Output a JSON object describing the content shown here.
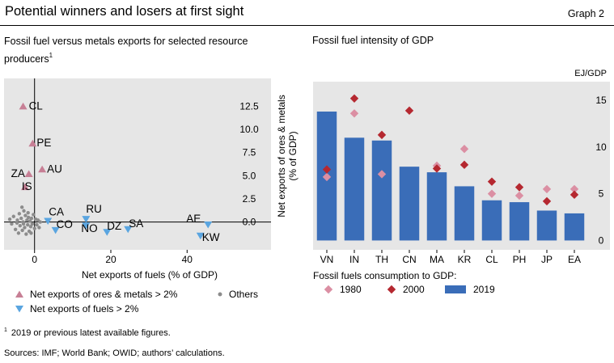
{
  "header": {
    "title": "Potential winners and losers at first sight",
    "graph_label": "Graph 2"
  },
  "left_panel": {
    "subtitle": "Fossil fuel versus metals exports for selected resource producers",
    "subtitle_note": "1"
  },
  "right_panel": {
    "subtitle": "Fossil fuel intensity of GDP"
  },
  "footnote": {
    "marker": "1",
    "text": "2019 or previous latest available figures."
  },
  "sources": "Sources: IMF; World Bank; OWID; authors’ calculations.",
  "colors": {
    "metals": "#c77f95",
    "fuels": "#5aa5e0",
    "others": "#8c8c8c",
    "bar_2019": "#3a6db8",
    "d1980": "#db8fa3",
    "d2000": "#b52830",
    "plot_bg": "#e6e6e6"
  },
  "chart_data": [
    {
      "type": "scatter",
      "title": "Fossil fuel versus metals exports for selected resource producers",
      "xlabel": "Net exports of fuels (% of GDP)",
      "ylabel": "Net exports of ores & metals (% of GDP)",
      "xlim": [
        -8,
        62
      ],
      "ylim": [
        -3,
        15.5
      ],
      "xticks": [
        0,
        20,
        40
      ],
      "yticks": [
        0.0,
        2.5,
        5.0,
        7.5,
        10.0,
        12.5
      ],
      "ytick_labels": [
        "0.0",
        "2.5",
        "5.0",
        "7.5",
        "10.0",
        "12.5"
      ],
      "y_axis_position": "right",
      "grid": false,
      "series": [
        {
          "name": "Net exports of ores & metals > 2%",
          "marker": "triangle-up",
          "points": [
            {
              "label": "CL",
              "x": -3.0,
              "y": 12.5
            },
            {
              "label": "PE",
              "x": -0.5,
              "y": 8.5
            },
            {
              "label": "AU",
              "x": 2.0,
              "y": 5.7
            },
            {
              "label": "ZA",
              "x": -1.5,
              "y": 5.2
            },
            {
              "label": "IS",
              "x": -2.5,
              "y": 3.8
            }
          ]
        },
        {
          "name": "Net exports of fuels > 2%",
          "marker": "triangle-down",
          "points": [
            {
              "label": "CA",
              "x": 3.5,
              "y": 0.1
            },
            {
              "label": "CO",
              "x": 5.5,
              "y": -0.9
            },
            {
              "label": "RU",
              "x": 13.5,
              "y": 0.3
            },
            {
              "label": "NO",
              "x": 13.5,
              "y": -0.4
            },
            {
              "label": "DZ",
              "x": 19.0,
              "y": -1.1
            },
            {
              "label": "SA",
              "x": 24.5,
              "y": -0.8
            },
            {
              "label": "AE",
              "x": 45.5,
              "y": -0.3
            },
            {
              "label": "KW",
              "x": 43.5,
              "y": -1.5
            }
          ]
        },
        {
          "name": "Others",
          "marker": "dot",
          "points": [
            {
              "x": -6.5,
              "y": 0.3
            },
            {
              "x": -6.0,
              "y": -0.2
            },
            {
              "x": -5.5,
              "y": 0.6
            },
            {
              "x": -5.0,
              "y": -0.8
            },
            {
              "x": -4.5,
              "y": 0.2
            },
            {
              "x": -4.2,
              "y": -1.2
            },
            {
              "x": -4.0,
              "y": 0.9
            },
            {
              "x": -3.8,
              "y": -0.4
            },
            {
              "x": -3.5,
              "y": 0.4
            },
            {
              "x": -3.2,
              "y": -0.9
            },
            {
              "x": -3.0,
              "y": 0.0
            },
            {
              "x": -2.8,
              "y": 1.2
            },
            {
              "x": -2.6,
              "y": -0.6
            },
            {
              "x": -2.4,
              "y": 0.7
            },
            {
              "x": -2.2,
              "y": -1.3
            },
            {
              "x": -2.0,
              "y": 0.2
            },
            {
              "x": -1.8,
              "y": -0.3
            },
            {
              "x": -1.6,
              "y": 0.5
            },
            {
              "x": -1.4,
              "y": -1.0
            },
            {
              "x": -1.2,
              "y": 0.1
            },
            {
              "x": -1.0,
              "y": -0.5
            },
            {
              "x": -0.8,
              "y": 0.4
            },
            {
              "x": -0.6,
              "y": -0.2
            },
            {
              "x": -0.3,
              "y": 0.8
            },
            {
              "x": 0.0,
              "y": -0.7
            },
            {
              "x": 0.3,
              "y": 0.3
            },
            {
              "x": 0.6,
              "y": -0.3
            },
            {
              "x": 0.9,
              "y": 0.2
            },
            {
              "x": 1.2,
              "y": -0.6
            },
            {
              "x": 1.5,
              "y": 0.0
            },
            {
              "x": -3.3,
              "y": 1.6
            },
            {
              "x": -1.7,
              "y": 1.0
            },
            {
              "x": -4.6,
              "y": -0.1
            },
            {
              "x": -2.9,
              "y": -0.2
            },
            {
              "x": -0.9,
              "y": -1.2
            }
          ]
        }
      ],
      "legend": {
        "placement": "bottom",
        "items": [
          {
            "label": "Net exports of ores & metals > 2%",
            "marker": "triangle-up"
          },
          {
            "label": "Others",
            "marker": "dot"
          },
          {
            "label": "Net exports of fuels > 2%",
            "marker": "triangle-down"
          }
        ]
      }
    },
    {
      "type": "bar",
      "title": "Fossil fuel intensity of GDP",
      "unit_label": "EJ/GDP",
      "categories": [
        "VN",
        "IN",
        "TH",
        "CN",
        "MA",
        "KR",
        "CL",
        "PH",
        "JP",
        "EA"
      ],
      "ylim": [
        -1,
        17
      ],
      "yticks": [
        0,
        5,
        10,
        15
      ],
      "y_axis_position": "right",
      "series": [
        {
          "name": "2019",
          "marker": "bar",
          "values": [
            13.8,
            11.0,
            10.7,
            7.9,
            7.3,
            5.8,
            4.3,
            4.1,
            3.2,
            2.9
          ]
        },
        {
          "name": "1980",
          "marker": "diamond",
          "values": [
            6.8,
            13.6,
            7.1,
            null,
            8.0,
            9.8,
            5.0,
            4.8,
            5.5,
            5.5
          ]
        },
        {
          "name": "2000",
          "marker": "diamond",
          "values": [
            7.6,
            15.2,
            11.3,
            13.9,
            7.7,
            8.1,
            6.3,
            5.7,
            4.2,
            4.9
          ]
        }
      ],
      "legend": {
        "title": "Fossil fuels consumption to GDP:",
        "placement": "bottom",
        "items": [
          {
            "label": "1980",
            "marker": "diamond"
          },
          {
            "label": "2000",
            "marker": "diamond"
          },
          {
            "label": "2019",
            "marker": "bar"
          }
        ]
      }
    }
  ]
}
